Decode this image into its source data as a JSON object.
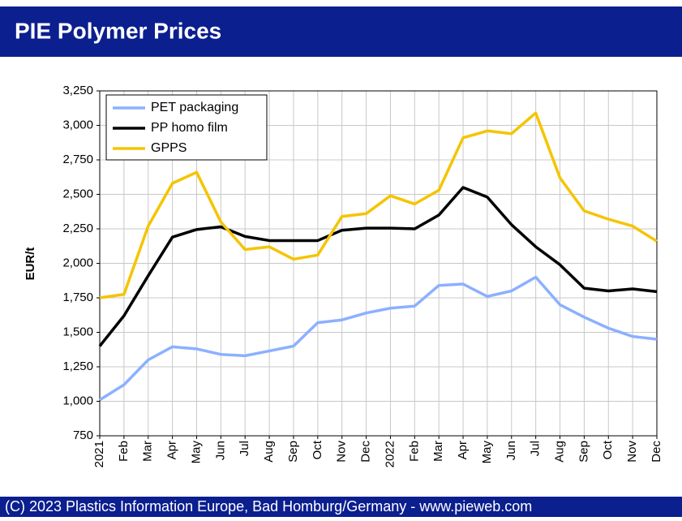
{
  "chart_data": {
    "type": "line",
    "title": "PIE Polymer Prices",
    "ylabel": "EUR/t",
    "footer": "(C) 2023 Plastics Information Europe, Bad Homburg/Germany - www.pieweb.com",
    "categories": [
      "2021",
      "Feb",
      "Mar",
      "Apr",
      "May",
      "Jun",
      "Jul",
      "Aug",
      "Sep",
      "Oct",
      "Nov",
      "Dec",
      "2022",
      "Feb",
      "Mar",
      "Apr",
      "May",
      "Jun",
      "Jul",
      "Aug",
      "Sep",
      "Oct",
      "Nov",
      "Dec"
    ],
    "series": [
      {
        "name": "PET packaging",
        "color": "#8cb0ff",
        "values": [
          1010,
          1120,
          1300,
          1395,
          1380,
          1340,
          1330,
          1365,
          1400,
          1570,
          1590,
          1640,
          1675,
          1690,
          1840,
          1850,
          1760,
          1800,
          1900,
          1700,
          1610,
          1530,
          1470,
          1450
        ]
      },
      {
        "name": "PP homo film",
        "color": "#000000",
        "values": [
          1400,
          1620,
          1910,
          2190,
          2245,
          2265,
          2195,
          2165,
          2165,
          2165,
          2240,
          2255,
          2255,
          2250,
          2350,
          2550,
          2480,
          2280,
          2120,
          1990,
          1820,
          1800,
          1815,
          1795
        ]
      },
      {
        "name": "GPPS",
        "color": "#f5c400",
        "values": [
          1750,
          1775,
          2270,
          2580,
          2660,
          2300,
          2100,
          2120,
          2030,
          2060,
          2340,
          2360,
          2490,
          2430,
          2530,
          2910,
          2960,
          2940,
          3090,
          2620,
          2380,
          2320,
          2270,
          2160
        ]
      }
    ],
    "ylim": [
      750,
      3250
    ],
    "yticks": [
      750,
      {
        "value": 1000,
        "label": "1,000"
      },
      {
        "value": 1250,
        "label": "1,250"
      },
      {
        "value": 1500,
        "label": "1,500"
      },
      {
        "value": 1750,
        "label": "1,750"
      },
      {
        "value": 2000,
        "label": "2,000"
      },
      {
        "value": 2250,
        "label": "2,250"
      },
      {
        "value": 2500,
        "label": "2,500"
      },
      {
        "value": 2750,
        "label": "2,750"
      },
      {
        "value": 3000,
        "label": "3,000"
      },
      {
        "value": 3250,
        "label": "3,250"
      }
    ],
    "grid": true,
    "legend": "upper left"
  }
}
